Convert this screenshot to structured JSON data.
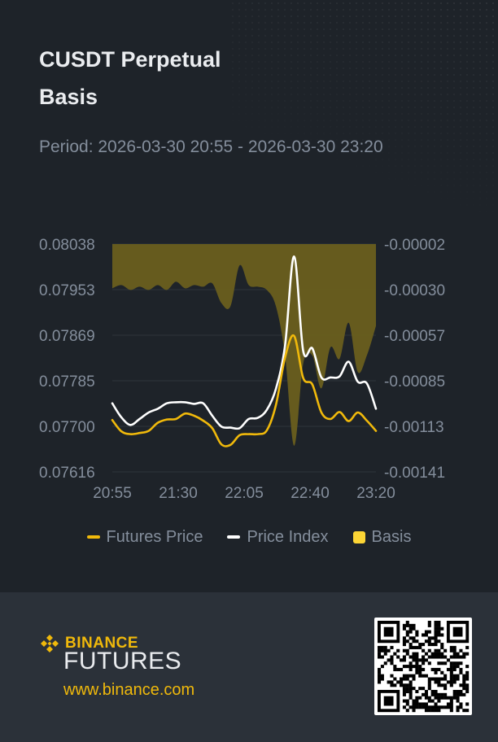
{
  "header": {
    "title": "CUSDT Perpetual",
    "subtitle": "Basis",
    "period": "Period: 2026-03-30 20:55 - 2026-03-30 23:20"
  },
  "legend": {
    "futures_label": "Futures Price",
    "index_label": "Price Index",
    "basis_label": "Basis"
  },
  "footer": {
    "brand": "BINANCE",
    "product": "FUTURES",
    "url": "www.binance.com"
  },
  "colors": {
    "background": "#1e2329",
    "footer_background": "#2b3139",
    "futures": "#f0b90b",
    "index": "#ffffff",
    "basis_fill": "#6a5f1d",
    "axis_text": "#848e9c"
  },
  "chart_data": {
    "type": "line",
    "x_ticks": [
      "20:55",
      "21:30",
      "22:05",
      "22:40",
      "23:20"
    ],
    "x": [
      "20:55",
      "21:00",
      "21:05",
      "21:10",
      "21:15",
      "21:20",
      "21:25",
      "21:30",
      "21:35",
      "21:40",
      "21:45",
      "21:50",
      "21:55",
      "22:00",
      "22:05",
      "22:10",
      "22:15",
      "22:20",
      "22:25",
      "22:30",
      "22:35",
      "22:40",
      "22:45",
      "22:50",
      "22:55",
      "23:00",
      "23:05",
      "23:10",
      "23:15",
      "23:20"
    ],
    "y_left_ticks": [
      "0.08038",
      "0.07953",
      "0.07869",
      "0.07785",
      "0.07700",
      "0.07616"
    ],
    "y_right_ticks": [
      "-0.00002",
      "-0.00030",
      "-0.00057",
      "-0.00085",
      "-0.00113",
      "-0.00141"
    ],
    "y_left_range": [
      0.07616,
      0.08038
    ],
    "y_right_range": [
      -0.00141,
      -2e-05
    ],
    "grid": true,
    "legend_position": "bottom",
    "series": [
      {
        "name": "Futures Price",
        "axis": "left",
        "color": "#f0b90b",
        "values": [
          0.07712,
          0.07691,
          0.07686,
          0.07688,
          0.07692,
          0.07707,
          0.07713,
          0.07714,
          0.07724,
          0.0772,
          0.07711,
          0.07697,
          0.07667,
          0.07666,
          0.07684,
          0.07686,
          0.07686,
          0.07693,
          0.0774,
          0.07828,
          0.07868,
          0.0779,
          0.07778,
          0.07726,
          0.07714,
          0.07727,
          0.0771,
          0.07726,
          0.07711,
          0.07692
        ]
      },
      {
        "name": "Price Index",
        "axis": "left",
        "color": "#ffffff",
        "values": [
          0.07743,
          0.07717,
          0.07703,
          0.07714,
          0.07726,
          0.07733,
          0.07743,
          0.07745,
          0.07745,
          0.07742,
          0.07743,
          0.0772,
          0.077,
          0.07698,
          0.07697,
          0.07714,
          0.07716,
          0.07731,
          0.0777,
          0.0785,
          0.08015,
          0.0784,
          0.07845,
          0.07791,
          0.07791,
          0.07793,
          0.0782,
          0.07783,
          0.0778,
          0.07733
        ]
      },
      {
        "name": "Basis",
        "axis": "right",
        "color": "#6a5f1d",
        "values": [
          -0.00029,
          -0.00027,
          -0.0003,
          -0.00028,
          -0.0003,
          -0.00027,
          -0.0003,
          -0.00025,
          -0.00029,
          -0.00027,
          -0.00028,
          -0.00026,
          -0.00038,
          -0.0004,
          -0.00015,
          -0.00027,
          -0.00028,
          -0.0003,
          -0.0004,
          -0.0007,
          -0.00125,
          -0.00075,
          -0.0007,
          -0.0009,
          -0.00065,
          -0.00072,
          -0.0005,
          -0.0008,
          -0.0007,
          -0.00052
        ]
      }
    ]
  }
}
